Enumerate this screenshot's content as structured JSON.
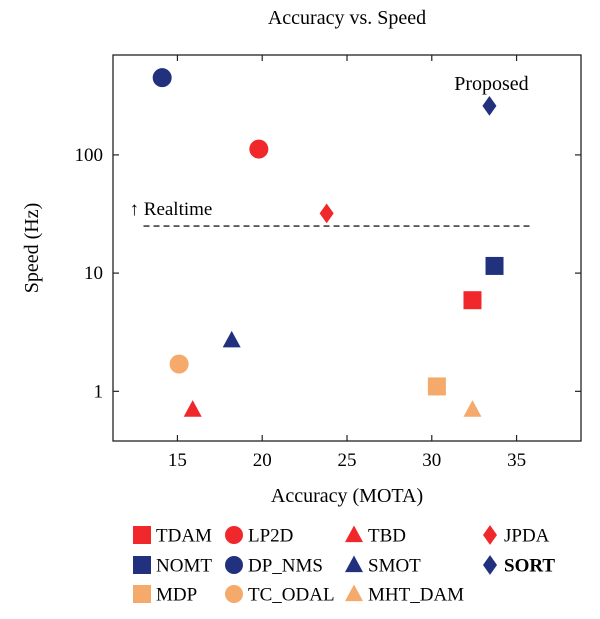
{
  "chart_data": {
    "type": "scatter",
    "title": "Accuracy vs. Speed",
    "xlabel": "Accuracy (MOTA)",
    "ylabel": "Speed (Hz)",
    "xlim": [
      11.2,
      38.8
    ],
    "ylim": [
      0.38,
      700
    ],
    "yscale": "log",
    "xticks": [
      15,
      20,
      25,
      30,
      35
    ],
    "xtick_labels": [
      "15",
      "20",
      "25",
      "30",
      "35"
    ],
    "yticks": [
      1,
      10,
      100
    ],
    "ytick_labels": [
      "1",
      "10",
      "100"
    ],
    "realtime_line": {
      "y": 25,
      "x_range": [
        13,
        36
      ],
      "label": "↑ Realtime"
    },
    "annotation": {
      "text": "Proposed",
      "x": 33.4,
      "y": 260
    },
    "colors": {
      "red": "#f0282b",
      "navy": "#22317e",
      "orange": "#f5a96a"
    },
    "series": [
      {
        "name": "TDAM",
        "marker": "square",
        "color": "#f0282b",
        "x": 32.4,
        "y": 5.9,
        "bold": false
      },
      {
        "name": "LP2D",
        "marker": "circle",
        "color": "#f0282b",
        "x": 19.8,
        "y": 112,
        "bold": false
      },
      {
        "name": "TBD",
        "marker": "triangle",
        "color": "#f0282b",
        "x": 15.9,
        "y": 0.7,
        "bold": false
      },
      {
        "name": "JPDA",
        "marker": "diamond",
        "color": "#f0282b",
        "x": 23.8,
        "y": 32,
        "bold": false
      },
      {
        "name": "NOMT",
        "marker": "square",
        "color": "#22317e",
        "x": 33.7,
        "y": 11.5,
        "bold": false
      },
      {
        "name": "DP_NMS",
        "marker": "circle",
        "color": "#22317e",
        "x": 14.1,
        "y": 450,
        "bold": false
      },
      {
        "name": "SMOT",
        "marker": "triangle",
        "color": "#22317e",
        "x": 18.2,
        "y": 2.7,
        "bold": false
      },
      {
        "name": "SORT",
        "marker": "diamond",
        "color": "#22317e",
        "x": 33.4,
        "y": 260,
        "bold": true
      },
      {
        "name": "MDP",
        "marker": "square",
        "color": "#f5a96a",
        "x": 30.3,
        "y": 1.1,
        "bold": false
      },
      {
        "name": "TC_ODAL",
        "marker": "circle",
        "color": "#f5a96a",
        "x": 15.1,
        "y": 1.7,
        "bold": false
      },
      {
        "name": "MHT_DAM",
        "marker": "triangle",
        "color": "#f5a96a",
        "x": 32.4,
        "y": 0.7,
        "bold": false
      }
    ],
    "legend_position": "bottom",
    "grid": false
  }
}
